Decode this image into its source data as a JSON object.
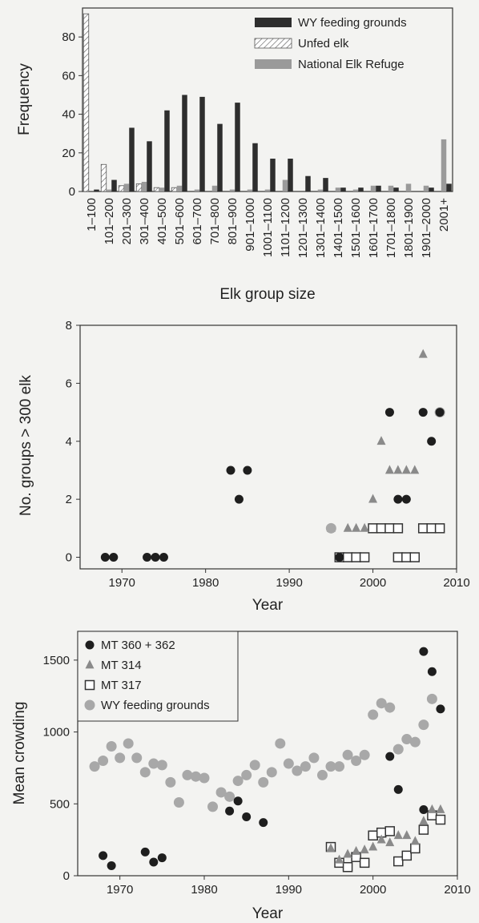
{
  "colors": {
    "wy": "#2e2e2e",
    "nat": "#9a9a9a",
    "tri": "#8a8a8a",
    "feed": "#a8a8a8",
    "black": "#1e1e1e"
  },
  "chart_data": [
    {
      "type": "bar",
      "xlabel": "Elk group size",
      "ylabel": "Frequency",
      "ylim": [
        0,
        95
      ],
      "yticks": [
        0,
        20,
        40,
        60,
        80
      ],
      "categories": [
        "1–100",
        "101–200",
        "201–300",
        "301–400",
        "401–500",
        "501–600",
        "601–700",
        "701–800",
        "801–900",
        "901–1000",
        "1001–1100",
        "1101–1200",
        "1201–1300",
        "1301–1400",
        "1401–1500",
        "1501–1600",
        "1601–1700",
        "1701–1800",
        "1801–1900",
        "1901–2000",
        "2001+"
      ],
      "series": [
        {
          "name": "WY feeding grounds",
          "key": "wy",
          "values": [
            1,
            6,
            33,
            26,
            42,
            50,
            49,
            35,
            46,
            25,
            17,
            17,
            8,
            7,
            2,
            2,
            3,
            2,
            0,
            2,
            4
          ]
        },
        {
          "name": "Unfed elk",
          "key": "unfed",
          "values": [
            92,
            14,
            3,
            4,
            2,
            2,
            0,
            0,
            0,
            0,
            0,
            0,
            0,
            0,
            0,
            0,
            0,
            0,
            0,
            0,
            0
          ]
        },
        {
          "name": "National Elk Refuge",
          "key": "nat",
          "values": [
            0,
            1,
            4,
            5,
            2,
            3,
            1,
            3,
            1,
            1,
            1,
            6,
            0,
            1,
            2,
            1,
            3,
            3,
            4,
            3,
            27
          ]
        }
      ],
      "legend_position": "top-right"
    },
    {
      "type": "scatter",
      "xlabel": "Year",
      "ylabel": "No. groups > 300 elk",
      "xlim": [
        1965,
        2010
      ],
      "ylim": [
        -0.4,
        8
      ],
      "xticks": [
        1970,
        1980,
        1990,
        2000,
        2010
      ],
      "yticks": [
        0,
        2,
        4,
        6,
        8
      ],
      "series": [
        {
          "key": "circle_black",
          "points": [
            [
              1968,
              0
            ],
            [
              1969,
              0
            ],
            [
              1973,
              0
            ],
            [
              1974,
              0
            ],
            [
              1975,
              0
            ],
            [
              1983,
              3
            ],
            [
              1984,
              2
            ],
            [
              1985,
              3
            ],
            [
              1996,
              0
            ],
            [
              2002,
              5
            ],
            [
              2003,
              2
            ],
            [
              2004,
              2
            ],
            [
              2006,
              5
            ],
            [
              2007,
              4
            ],
            [
              2008,
              5
            ]
          ]
        },
        {
          "key": "circle_gray",
          "points": [
            [
              1995,
              1
            ],
            [
              2008,
              5
            ]
          ]
        },
        {
          "key": "triangle",
          "points": [
            [
              1995,
              1
            ],
            [
              1996,
              0
            ],
            [
              1997,
              1
            ],
            [
              1998,
              1
            ],
            [
              1999,
              1
            ],
            [
              2000,
              2
            ],
            [
              2001,
              4
            ],
            [
              2002,
              3
            ],
            [
              2003,
              3
            ],
            [
              2004,
              3
            ],
            [
              2005,
              3
            ],
            [
              2006,
              7
            ],
            [
              2008,
              5
            ]
          ]
        },
        {
          "key": "square",
          "points": [
            [
              1996,
              0
            ],
            [
              1997,
              0
            ],
            [
              1998,
              0
            ],
            [
              1999,
              0
            ],
            [
              2000,
              1
            ],
            [
              2001,
              1
            ],
            [
              2002,
              1
            ],
            [
              2003,
              1
            ],
            [
              2003,
              0
            ],
            [
              2004,
              0
            ],
            [
              2005,
              0
            ],
            [
              2006,
              1
            ],
            [
              2007,
              1
            ],
            [
              2008,
              1
            ]
          ]
        }
      ]
    },
    {
      "type": "scatter",
      "xlabel": "Year",
      "ylabel": "Mean crowding",
      "xlim": [
        1965,
        2010
      ],
      "ylim": [
        0,
        1700
      ],
      "xticks": [
        1970,
        1980,
        1990,
        2000,
        2010
      ],
      "yticks": [
        0,
        500,
        1000,
        1500
      ],
      "legend_position": "top-left",
      "series": [
        {
          "name": "MT 360 + 362",
          "key": "circle_black",
          "points": [
            [
              1968,
              140
            ],
            [
              1969,
              70
            ],
            [
              1973,
              165
            ],
            [
              1974,
              95
            ],
            [
              1975,
              125
            ],
            [
              1983,
              450
            ],
            [
              1984,
              520
            ],
            [
              1985,
              410
            ],
            [
              1987,
              370
            ],
            [
              2002,
              830
            ],
            [
              2003,
              600
            ],
            [
              2006,
              1560
            ],
            [
              2007,
              1420
            ],
            [
              2008,
              1160
            ],
            [
              2006,
              460
            ]
          ]
        },
        {
          "name": "MT 314",
          "key": "triangle",
          "points": [
            [
              1995,
              190
            ],
            [
              1996,
              110
            ],
            [
              1997,
              150
            ],
            [
              1998,
              170
            ],
            [
              1999,
              180
            ],
            [
              2000,
              200
            ],
            [
              2001,
              250
            ],
            [
              2002,
              230
            ],
            [
              2003,
              280
            ],
            [
              2004,
              280
            ],
            [
              2005,
              240
            ],
            [
              2006,
              380
            ],
            [
              2007,
              460
            ],
            [
              2008,
              460
            ]
          ]
        },
        {
          "name": "MT 317",
          "key": "square",
          "points": [
            [
              1995,
              200
            ],
            [
              1996,
              90
            ],
            [
              1997,
              60
            ],
            [
              1998,
              130
            ],
            [
              1999,
              90
            ],
            [
              2000,
              280
            ],
            [
              2001,
              300
            ],
            [
              2002,
              310
            ],
            [
              2003,
              100
            ],
            [
              2004,
              140
            ],
            [
              2005,
              190
            ],
            [
              2006,
              320
            ],
            [
              2007,
              420
            ],
            [
              2008,
              390
            ]
          ]
        },
        {
          "name": "WY feeding grounds",
          "key": "circle_gray",
          "points": [
            [
              1967,
              760
            ],
            [
              1968,
              800
            ],
            [
              1969,
              900
            ],
            [
              1970,
              820
            ],
            [
              1971,
              920
            ],
            [
              1972,
              820
            ],
            [
              1973,
              720
            ],
            [
              1974,
              780
            ],
            [
              1975,
              770
            ],
            [
              1976,
              650
            ],
            [
              1977,
              510
            ],
            [
              1978,
              700
            ],
            [
              1979,
              690
            ],
            [
              1980,
              680
            ],
            [
              1981,
              480
            ],
            [
              1982,
              580
            ],
            [
              1983,
              550
            ],
            [
              1984,
              660
            ],
            [
              1985,
              700
            ],
            [
              1986,
              770
            ],
            [
              1987,
              650
            ],
            [
              1988,
              720
            ],
            [
              1989,
              920
            ],
            [
              1990,
              780
            ],
            [
              1991,
              730
            ],
            [
              1992,
              760
            ],
            [
              1993,
              820
            ],
            [
              1994,
              700
            ],
            [
              1995,
              760
            ],
            [
              1996,
              760
            ],
            [
              1997,
              840
            ],
            [
              1998,
              800
            ],
            [
              1999,
              840
            ],
            [
              2000,
              1120
            ],
            [
              2001,
              1200
            ],
            [
              2002,
              1170
            ],
            [
              2003,
              880
            ],
            [
              2004,
              950
            ],
            [
              2005,
              930
            ],
            [
              2006,
              1050
            ],
            [
              2007,
              1230
            ]
          ]
        }
      ]
    }
  ]
}
